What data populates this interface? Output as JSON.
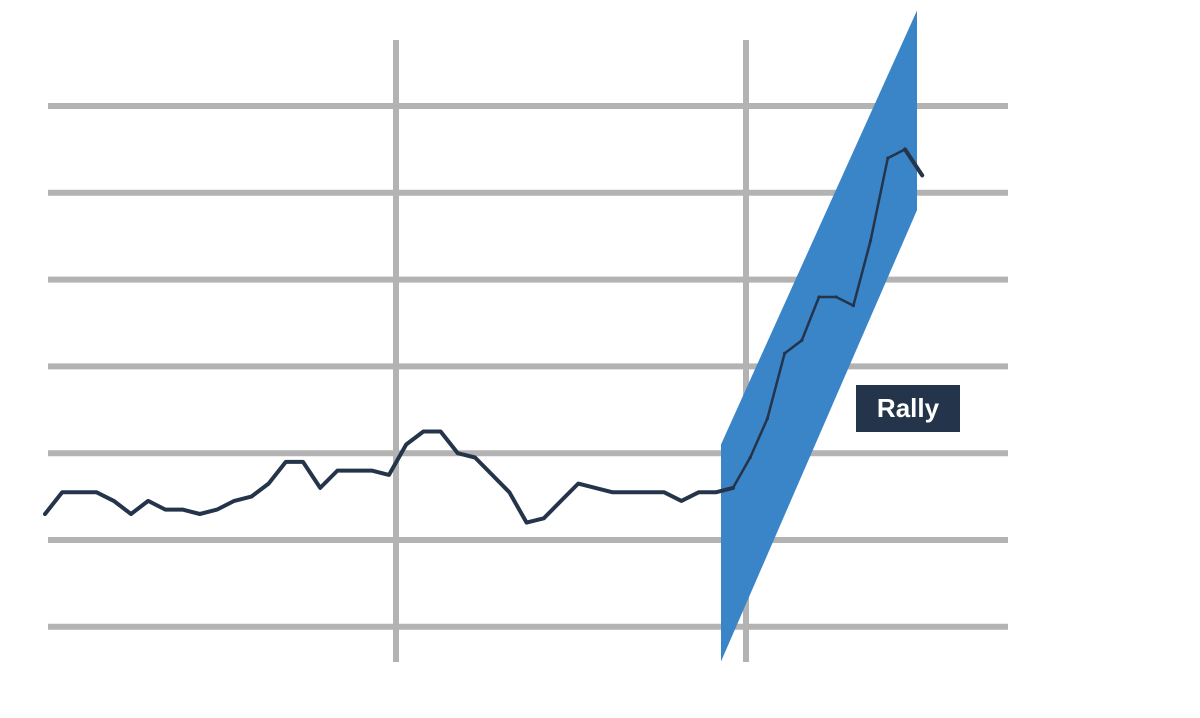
{
  "chart_data": {
    "type": "line",
    "title": "",
    "xlabel": "",
    "ylabel": "",
    "y_tick_labels": [],
    "grid": true,
    "series": [
      {
        "values": [
          0.3,
          0.55,
          0.55,
          0.55,
          0.45,
          0.3,
          0.45,
          0.35,
          0.35,
          0.3,
          0.35,
          0.45,
          0.5,
          0.65,
          0.9,
          0.9,
          0.6,
          0.8,
          0.8,
          0.8,
          0.75,
          1.1,
          1.25,
          1.25,
          1.0,
          0.95,
          0.75,
          0.55,
          0.2,
          0.25,
          0.45,
          0.65,
          0.6,
          0.55,
          0.55,
          0.55,
          0.55,
          0.45,
          0.55,
          0.55,
          0.6,
          0.95,
          1.4,
          2.15,
          2.3,
          2.8,
          2.8,
          2.7,
          3.45,
          4.4,
          4.5,
          4.2
        ]
      }
    ],
    "annotations": [
      {
        "type": "shaded-channel",
        "x_start_index": 40,
        "x_end_index": 50,
        "y_lower_start": -1.4,
        "y_upper_start": 1.1,
        "y_lower_end": 3.8,
        "y_upper_end": 6.1,
        "color": "#3a84c8"
      },
      {
        "type": "label",
        "text": "Rally",
        "bg_color": "#24344a",
        "text_color": "#ffffff"
      }
    ],
    "colors": {
      "line": "#24344a",
      "grid": "#b3b3b3",
      "channel": "#3a84c8"
    }
  }
}
